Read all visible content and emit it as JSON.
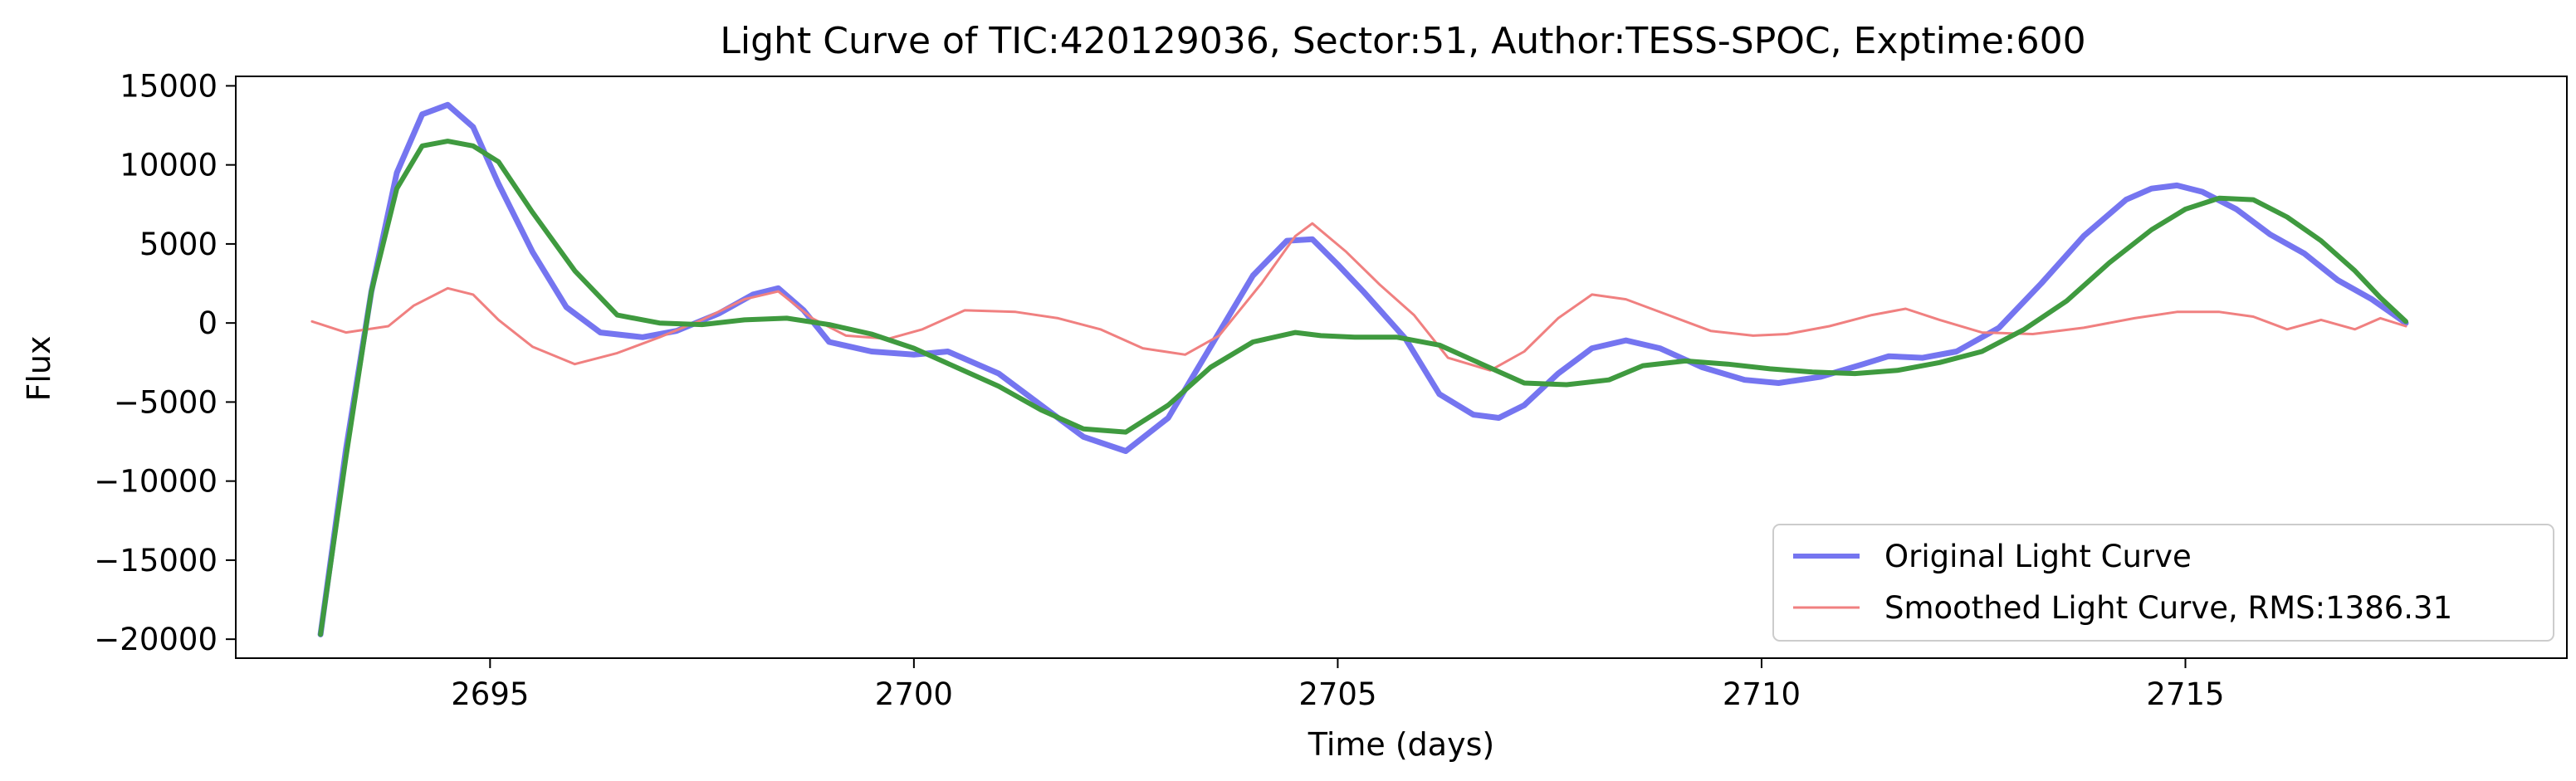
{
  "chart_data": {
    "type": "line",
    "title": "Light Curve of TIC:420129036, Sector:51, Author:TESS-SPOC, Exptime:600",
    "xlabel": "Time (days)",
    "ylabel": "Flux",
    "xlim": [
      2692.0,
      2719.5
    ],
    "ylim": [
      -21200,
      15600
    ],
    "xticks": [
      2695,
      2700,
      2705,
      2710,
      2715
    ],
    "xtick_labels": [
      "2695",
      "2700",
      "2705",
      "2710",
      "2715"
    ],
    "yticks": [
      15000,
      10000,
      5000,
      0,
      -5000,
      -10000,
      -15000,
      -20000
    ],
    "ytick_labels": [
      "15000",
      "10000",
      "5000",
      "0",
      "−5000",
      "−10000",
      "−15000",
      "−20000"
    ],
    "grid": false,
    "legend_position": "lower-right",
    "series": [
      {
        "name": "Original Light Curve",
        "color": "#7575f0",
        "x": [
          2693.0,
          2693.3,
          2693.6,
          2693.9,
          2694.2,
          2694.5,
          2694.8,
          2695.1,
          2695.5,
          2695.9,
          2696.3,
          2696.8,
          2697.2,
          2697.7,
          2698.1,
          2698.4,
          2698.7,
          2699.0,
          2699.5,
          2700.0,
          2700.4,
          2701.0,
          2701.5,
          2702.0,
          2702.5,
          2703.0,
          2703.5,
          2704.0,
          2704.4,
          2704.7,
          2705.0,
          2705.3,
          2705.8,
          2706.2,
          2706.6,
          2706.9,
          2707.2,
          2707.6,
          2708.0,
          2708.4,
          2708.8,
          2709.3,
          2709.8,
          2710.2,
          2710.7,
          2711.2,
          2711.5,
          2711.9,
          2712.3,
          2712.8,
          2713.3,
          2713.8,
          2714.3,
          2714.6,
          2714.9,
          2715.2,
          2715.6,
          2716.0,
          2716.4,
          2716.8,
          2717.2,
          2717.6
        ],
        "y": [
          -19700,
          -8000,
          2000,
          9500,
          13200,
          13800,
          12400,
          8800,
          4500,
          1000,
          -600,
          -900,
          -500,
          600,
          1800,
          2200,
          800,
          -1200,
          -1800,
          -2000,
          -1800,
          -3200,
          -5200,
          -7200,
          -8100,
          -6000,
          -1500,
          3000,
          5200,
          5300,
          3700,
          2000,
          -1000,
          -4500,
          -5800,
          -6000,
          -5200,
          -3200,
          -1600,
          -1100,
          -1600,
          -2800,
          -3600,
          -3800,
          -3400,
          -2600,
          -2100,
          -2200,
          -1800,
          -300,
          2500,
          5500,
          7800,
          8500,
          8700,
          8300,
          7200,
          5600,
          4400,
          2700,
          1500,
          0
        ]
      },
      {
        "name": "Smoothed Light Curve, RMS:1386.31",
        "color": "#f08080",
        "x": [
          2692.9,
          2693.3,
          2693.8,
          2694.1,
          2694.5,
          2694.8,
          2695.1,
          2695.5,
          2696.0,
          2696.5,
          2697.0,
          2697.5,
          2698.0,
          2698.4,
          2698.8,
          2699.2,
          2699.7,
          2700.1,
          2700.6,
          2701.2,
          2701.7,
          2702.2,
          2702.7,
          2703.2,
          2703.6,
          2704.1,
          2704.5,
          2704.7,
          2705.1,
          2705.5,
          2705.9,
          2706.3,
          2706.8,
          2707.2,
          2707.6,
          2708.0,
          2708.4,
          2708.9,
          2709.4,
          2709.9,
          2710.3,
          2710.8,
          2711.3,
          2711.7,
          2712.1,
          2712.6,
          2713.2,
          2713.8,
          2714.4,
          2714.9,
          2715.4,
          2715.8,
          2716.2,
          2716.6,
          2717.0,
          2717.3,
          2717.6
        ],
        "y": [
          100,
          -600,
          -200,
          1100,
          2200,
          1800,
          200,
          -1500,
          -2600,
          -1900,
          -900,
          200,
          1500,
          2000,
          300,
          -800,
          -1000,
          -400,
          800,
          700,
          300,
          -400,
          -1600,
          -2000,
          -800,
          2500,
          5500,
          6300,
          4500,
          2400,
          500,
          -2200,
          -3000,
          -1800,
          300,
          1800,
          1500,
          500,
          -500,
          -800,
          -700,
          -200,
          500,
          900,
          200,
          -600,
          -700,
          -300,
          300,
          700,
          700,
          400,
          -400,
          200,
          -400,
          300,
          -200
        ]
      },
      {
        "name": "",
        "color": "#3f9a3f",
        "x": [
          2693.0,
          2693.3,
          2693.6,
          2693.9,
          2694.2,
          2694.5,
          2694.8,
          2695.1,
          2695.5,
          2696.0,
          2696.5,
          2697.0,
          2697.5,
          2698.0,
          2698.5,
          2699.0,
          2699.5,
          2700.0,
          2700.5,
          2701.0,
          2701.5,
          2702.0,
          2702.5,
          2703.0,
          2703.5,
          2704.0,
          2704.5,
          2704.8,
          2705.2,
          2705.7,
          2706.2,
          2706.7,
          2707.2,
          2707.7,
          2708.2,
          2708.6,
          2709.1,
          2709.6,
          2710.1,
          2710.6,
          2711.1,
          2711.6,
          2712.1,
          2712.6,
          2713.1,
          2713.6,
          2714.1,
          2714.6,
          2715.0,
          2715.4,
          2715.8,
          2716.2,
          2716.6,
          2717.0,
          2717.3,
          2717.6
        ],
        "y": [
          -19700,
          -8500,
          2000,
          8500,
          11200,
          11500,
          11200,
          10200,
          7000,
          3300,
          500,
          0,
          -100,
          200,
          300,
          -100,
          -700,
          -1600,
          -2800,
          -4000,
          -5500,
          -6700,
          -6900,
          -5200,
          -2800,
          -1200,
          -600,
          -800,
          -900,
          -900,
          -1400,
          -2600,
          -3800,
          -3900,
          -3600,
          -2700,
          -2400,
          -2600,
          -2900,
          -3100,
          -3200,
          -3000,
          -2500,
          -1800,
          -400,
          1400,
          3800,
          5900,
          7200,
          7900,
          7800,
          6700,
          5200,
          3300,
          1600,
          100
        ]
      }
    ]
  }
}
